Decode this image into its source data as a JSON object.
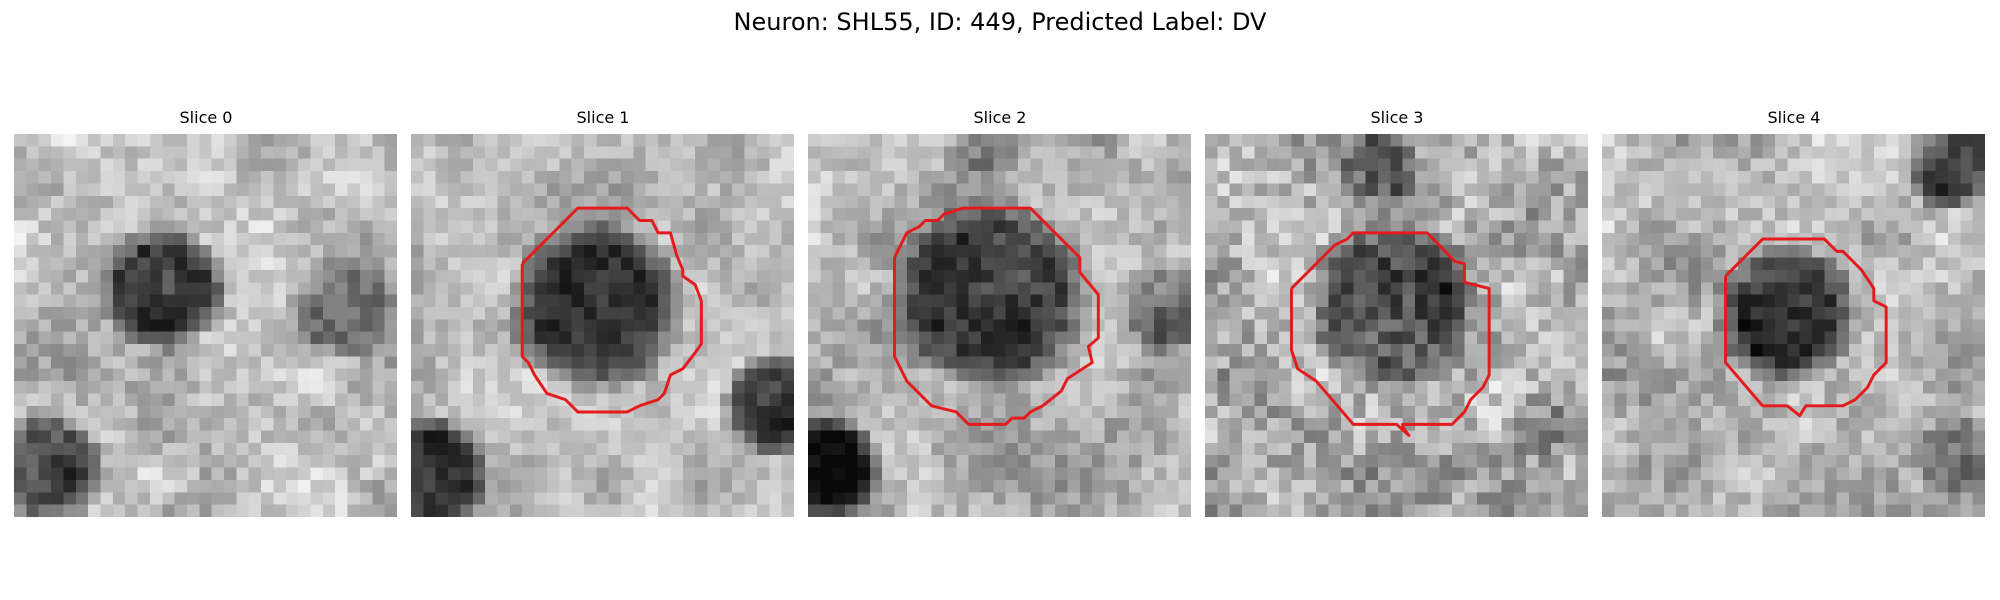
{
  "figure": {
    "title": "Neuron: SHL55, ID: 449, Predicted Label: DV",
    "colors": {
      "contour": "#e41a1c",
      "colormap": "grayscale"
    },
    "panels": [
      {
        "title": "Slice 0",
        "has_contour": false
      },
      {
        "title": "Slice 1",
        "has_contour": true
      },
      {
        "title": "Slice 2",
        "has_contour": true
      },
      {
        "title": "Slice 3",
        "has_contour": true
      },
      {
        "title": "Slice 4",
        "has_contour": true
      }
    ]
  }
}
